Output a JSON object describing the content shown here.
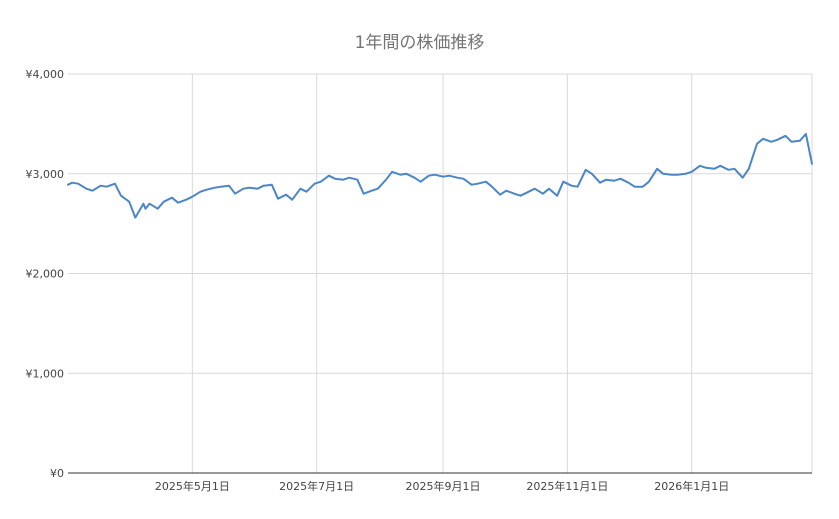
{
  "chart_data": {
    "type": "line",
    "title": "1年間の株価推移",
    "xlabel": "",
    "ylabel": "",
    "ylim": [
      0,
      4000
    ],
    "y_ticks": [
      0,
      1000,
      2000,
      3000,
      4000
    ],
    "y_tick_labels": [
      "¥0",
      "¥1,000",
      "¥2,000",
      "¥3,000",
      "¥4,000"
    ],
    "x_range": [
      "2025-03-01",
      "2026-03-01"
    ],
    "x_ticks": [
      "2025-05-01",
      "2025-07-01",
      "2025-09-01",
      "2025-11-01",
      "2026-01-01"
    ],
    "x_tick_labels": [
      "2025年5月1日",
      "2025年7月1日",
      "2025年9月1日",
      "2025年11月1日",
      "2026年1月1日"
    ],
    "grid": true,
    "legend": "none",
    "line_color": "#4a86c8",
    "series": [
      {
        "x": [
          "2025-03-01",
          "2025-03-03",
          "2025-03-06",
          "2025-03-10",
          "2025-03-13",
          "2025-03-17",
          "2025-03-20",
          "2025-03-24",
          "2025-03-27",
          "2025-03-31",
          "2025-04-03",
          "2025-04-07",
          "2025-04-08",
          "2025-04-10",
          "2025-04-14",
          "2025-04-17",
          "2025-04-21",
          "2025-04-24",
          "2025-04-28",
          "2025-05-01",
          "2025-05-05",
          "2025-05-08",
          "2025-05-12",
          "2025-05-15",
          "2025-05-19",
          "2025-05-22",
          "2025-05-26",
          "2025-05-29",
          "2025-06-02",
          "2025-06-05",
          "2025-06-09",
          "2025-06-12",
          "2025-06-16",
          "2025-06-19",
          "2025-06-23",
          "2025-06-26",
          "2025-06-30",
          "2025-07-03",
          "2025-07-07",
          "2025-07-10",
          "2025-07-14",
          "2025-07-17",
          "2025-07-21",
          "2025-07-24",
          "2025-07-28",
          "2025-07-31",
          "2025-08-04",
          "2025-08-07",
          "2025-08-11",
          "2025-08-14",
          "2025-08-18",
          "2025-08-21",
          "2025-08-25",
          "2025-08-28",
          "2025-09-01",
          "2025-09-04",
          "2025-09-08",
          "2025-09-11",
          "2025-09-15",
          "2025-09-18",
          "2025-09-22",
          "2025-09-25",
          "2025-09-29",
          "2025-10-02",
          "2025-10-06",
          "2025-10-09",
          "2025-10-13",
          "2025-10-16",
          "2025-10-20",
          "2025-10-23",
          "2025-10-27",
          "2025-10-30",
          "2025-11-03",
          "2025-11-06",
          "2025-11-10",
          "2025-11-13",
          "2025-11-17",
          "2025-11-20",
          "2025-11-24",
          "2025-11-27",
          "2025-12-01",
          "2025-12-04",
          "2025-12-08",
          "2025-12-11",
          "2025-12-15",
          "2025-12-18",
          "2025-12-22",
          "2025-12-25",
          "2025-12-29",
          "2026-01-01",
          "2026-01-05",
          "2026-01-08",
          "2026-01-12",
          "2026-01-15",
          "2026-01-19",
          "2026-01-22",
          "2026-01-26",
          "2026-01-29",
          "2026-02-02",
          "2026-02-05",
          "2026-02-09",
          "2026-02-12",
          "2026-02-16",
          "2026-02-19",
          "2026-02-23",
          "2026-02-26",
          "2026-03-01"
        ],
        "values": [
          2890,
          2910,
          2900,
          2850,
          2830,
          2880,
          2870,
          2900,
          2780,
          2720,
          2560,
          2700,
          2650,
          2700,
          2650,
          2720,
          2760,
          2710,
          2740,
          2770,
          2820,
          2840,
          2860,
          2870,
          2880,
          2800,
          2850,
          2860,
          2850,
          2880,
          2890,
          2750,
          2790,
          2740,
          2850,
          2820,
          2900,
          2920,
          2980,
          2950,
          2940,
          2960,
          2940,
          2800,
          2830,
          2850,
          2940,
          3020,
          2990,
          3000,
          2960,
          2920,
          2980,
          2990,
          2970,
          2980,
          2960,
          2950,
          2890,
          2900,
          2920,
          2870,
          2790,
          2830,
          2800,
          2780,
          2820,
          2850,
          2800,
          2850,
          2780,
          2920,
          2880,
          2870,
          3040,
          3000,
          2910,
          2940,
          2930,
          2950,
          2910,
          2870,
          2870,
          2920,
          3050,
          3000,
          2990,
          2990,
          3000,
          3020,
          3080,
          3060,
          3050,
          3080,
          3040,
          3050,
          2960,
          3050,
          3300,
          3350,
          3320,
          3340,
          3380,
          3320,
          3330,
          3400,
          3100
        ]
      }
    ]
  }
}
